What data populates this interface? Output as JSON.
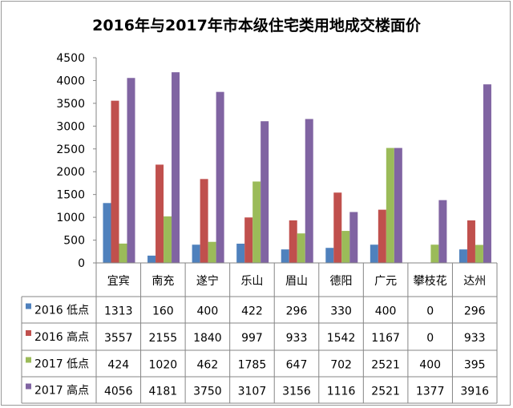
{
  "chart_data": {
    "type": "bar",
    "title": "2016年与2017年市本级住宅类用地成交楼面价",
    "categories": [
      "宜宾",
      "南充",
      "遂宁",
      "乐山",
      "眉山",
      "德阳",
      "广元",
      "攀枝花",
      "达州"
    ],
    "series": [
      {
        "name": "2016 低点",
        "color": "#4f81bd",
        "values": [
          1313,
          160,
          400,
          422,
          296,
          330,
          400,
          0,
          296
        ]
      },
      {
        "name": "2016 高点",
        "color": "#c0504d",
        "values": [
          3557,
          2155,
          1840,
          997,
          933,
          1542,
          1167,
          0,
          933
        ]
      },
      {
        "name": "2017 低点",
        "color": "#9bbb59",
        "values": [
          424,
          1020,
          462,
          1785,
          647,
          702,
          2521,
          400,
          395
        ]
      },
      {
        "name": "2017 高点",
        "color": "#8064a2",
        "values": [
          4056,
          4181,
          3750,
          3107,
          3156,
          1116,
          2521,
          1377,
          3916
        ]
      }
    ],
    "ylim": [
      0,
      4500
    ],
    "yticks": [
      0,
      500,
      1000,
      1500,
      2000,
      2500,
      3000,
      3500,
      4000,
      4500
    ],
    "grid": false,
    "legend": "data-table"
  }
}
